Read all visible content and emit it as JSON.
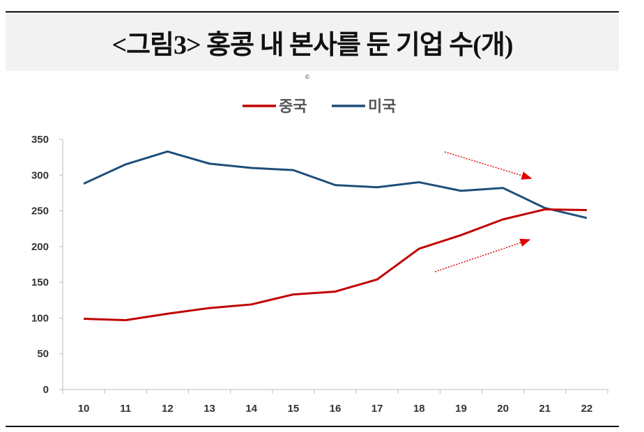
{
  "title": "<그림3> 홍콩 내 본사를 둔 기업 수(개)",
  "copyright": "©",
  "chart_data": {
    "type": "line",
    "title": "<그림3> 홍콩 내 본사를 둔 기업 수(개)",
    "x": [
      "10",
      "11",
      "12",
      "13",
      "14",
      "15",
      "16",
      "17",
      "18",
      "19",
      "20",
      "21",
      "22"
    ],
    "ylim": [
      0,
      350
    ],
    "yticks": [
      "0",
      "50",
      "100",
      "150",
      "200",
      "250",
      "300",
      "350"
    ],
    "grid": false,
    "legend_position": "top-center",
    "series": [
      {
        "name": "중국",
        "color": "#c00000",
        "values": [
          99,
          97,
          106,
          114,
          119,
          133,
          137,
          154,
          197,
          216,
          238,
          252,
          251
        ]
      },
      {
        "name": "미국",
        "color": "#1f4e79",
        "values": [
          288,
          315,
          333,
          316,
          310,
          307,
          286,
          283,
          290,
          278,
          282,
          254,
          240
        ]
      }
    ]
  }
}
